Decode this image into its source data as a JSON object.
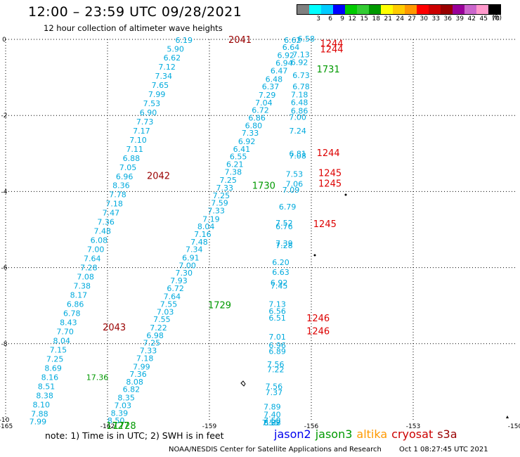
{
  "title": "12:00 – 23:59 UTC 09/28/2021",
  "subtitle": "12 hour collection of altimeter wave heights",
  "colorbar": {
    "colors": [
      "#808080",
      "#00ffff",
      "#00ccff",
      "#0000ff",
      "#00cc00",
      "#33cc33",
      "#009900",
      "#ffff00",
      "#ffcc00",
      "#ff9900",
      "#ff0000",
      "#cc0000",
      "#990000",
      "#990099",
      "#cc66cc",
      "#ff99cc",
      "#000000"
    ],
    "ticks": [
      "",
      "3",
      "6",
      "9",
      "12",
      "15",
      "18",
      "21",
      "24",
      "27",
      "30",
      "33",
      "36",
      "39",
      "42",
      "45",
      "70"
    ],
    "unit": "(ft)"
  },
  "note": "note:  1) Time is in UTC;  2) SWH is in feet",
  "legend": [
    {
      "name": "jason2",
      "color": "#0000ee"
    },
    {
      "name": "jason3",
      "color": "#009900"
    },
    {
      "name": "altika",
      "color": "#ff9900"
    },
    {
      "name": "cryosat",
      "color": "#cc0000"
    },
    {
      "name": "s3a",
      "color": "#990000"
    }
  ],
  "footer": {
    "credit": "NOAA/NESDIS Center for Satellite Applications and Research",
    "date": "Oct  1 08:27:45 UTC 2021"
  },
  "chart_data": {
    "type": "scatter",
    "xlim": [
      -165,
      -150
    ],
    "ylim": [
      -10,
      0
    ],
    "xticks": [
      "-165",
      "-162",
      "-159",
      "-156",
      "-153",
      "-150"
    ],
    "yticks": [
      "0",
      "-2",
      "-4",
      "-6",
      "-8",
      "-10"
    ],
    "grid": true,
    "value_color": "#00aadd",
    "tracks": [
      {
        "points": [
          [
            -159.75,
            -0.02,
            "6.19"
          ],
          [
            -160.0,
            -0.25,
            "5.90"
          ],
          [
            -160.1,
            -0.48,
            "6.62"
          ],
          [
            -160.25,
            -0.72,
            "7.12"
          ],
          [
            -160.35,
            -0.96,
            "7.34"
          ],
          [
            -160.45,
            -1.2,
            "7.65"
          ],
          [
            -160.55,
            -1.44,
            "7.99"
          ],
          [
            -160.7,
            -1.68,
            "7.53"
          ],
          [
            -160.8,
            -1.92,
            "6.90"
          ],
          [
            -160.9,
            -2.16,
            "7.73"
          ],
          [
            -161.0,
            -2.4,
            "7.17"
          ],
          [
            -161.1,
            -2.64,
            "7.10"
          ],
          [
            -161.2,
            -2.88,
            "7.11"
          ],
          [
            -161.3,
            -3.12,
            "6.88"
          ],
          [
            -161.4,
            -3.36,
            "7.05"
          ],
          [
            -161.5,
            -3.6,
            "6.96"
          ],
          [
            -161.6,
            -3.84,
            "8.36"
          ],
          [
            -161.7,
            -4.08,
            "7.78"
          ],
          [
            -161.8,
            -4.32,
            "7.18"
          ],
          [
            -161.9,
            -4.56,
            "7.47"
          ],
          [
            -162.05,
            -4.8,
            "7.36"
          ],
          [
            -162.15,
            -5.04,
            "7.48"
          ],
          [
            -162.25,
            -5.28,
            "6.08"
          ],
          [
            -162.35,
            -5.52,
            "7.00"
          ],
          [
            -162.45,
            -5.76,
            "7.64"
          ],
          [
            -162.55,
            -6.0,
            "7.28"
          ],
          [
            -162.65,
            -6.24,
            "7.08"
          ],
          [
            -162.75,
            -6.48,
            "7.38"
          ],
          [
            -162.85,
            -6.72,
            "8.17"
          ],
          [
            -162.95,
            -6.96,
            "6.86"
          ],
          [
            -163.05,
            -7.2,
            "6.78"
          ],
          [
            -163.15,
            -7.44,
            "8.43"
          ],
          [
            -163.25,
            -7.68,
            "7.70"
          ],
          [
            -163.35,
            -7.92,
            "8.04"
          ],
          [
            -163.45,
            -8.16,
            "7.15"
          ],
          [
            -163.55,
            -8.4,
            "7.25"
          ],
          [
            -163.6,
            -8.64,
            "8.69"
          ],
          [
            -163.7,
            -8.88,
            "8.16"
          ],
          [
            -163.8,
            -9.12,
            "8.51"
          ],
          [
            -163.85,
            -9.36,
            "8.38"
          ],
          [
            -163.95,
            -9.6,
            "8.10"
          ],
          [
            -164.0,
            -9.84,
            "7.88"
          ],
          [
            -164.05,
            -10.05,
            "7.99"
          ]
        ]
      },
      {
        "points": [
          [
            -156.55,
            -0.02,
            "6.62"
          ],
          [
            -156.6,
            -0.2,
            "6.64"
          ],
          [
            -156.75,
            -0.42,
            "6.92"
          ],
          [
            -156.8,
            -0.62,
            "6.94"
          ],
          [
            -156.95,
            -0.82,
            "6.47"
          ],
          [
            -157.1,
            -1.04,
            "6.48"
          ],
          [
            -157.2,
            -1.24,
            "6.37"
          ],
          [
            -157.3,
            -1.46,
            "7.29"
          ],
          [
            -157.4,
            -1.66,
            "7.04"
          ],
          [
            -157.5,
            -1.86,
            "6.72"
          ],
          [
            -157.6,
            -2.06,
            "6.86"
          ],
          [
            -157.7,
            -2.26,
            "6.80"
          ],
          [
            -157.8,
            -2.46,
            "7.33"
          ],
          [
            -157.9,
            -2.68,
            "6.92"
          ],
          [
            -158.05,
            -2.88,
            "6.41"
          ],
          [
            -158.15,
            -3.08,
            "6.55"
          ],
          [
            -158.25,
            -3.28,
            "6.21"
          ],
          [
            -158.3,
            -3.48,
            "7.38"
          ],
          [
            -158.45,
            -3.7,
            "7.25"
          ],
          [
            -158.55,
            -3.9,
            "7.33"
          ],
          [
            -158.65,
            -4.1,
            "7.25"
          ],
          [
            -158.7,
            -4.3,
            "7.59"
          ],
          [
            -158.8,
            -4.5,
            "7.33"
          ],
          [
            -158.95,
            -4.72,
            "7.19"
          ],
          [
            -159.1,
            -4.92,
            "8.04"
          ],
          [
            -159.2,
            -5.12,
            "7.16"
          ],
          [
            -159.3,
            -5.32,
            "7.48"
          ],
          [
            -159.45,
            -5.52,
            "7.34"
          ],
          [
            -159.55,
            -5.74,
            "6.91"
          ],
          [
            -159.65,
            -5.94,
            "7.00"
          ],
          [
            -159.75,
            -6.14,
            "7.30"
          ],
          [
            -159.9,
            -6.34,
            "7.93"
          ],
          [
            -160.0,
            -6.54,
            "6.72"
          ],
          [
            -160.1,
            -6.76,
            "7.64"
          ],
          [
            -160.2,
            -6.96,
            "7.55"
          ],
          [
            -160.3,
            -7.16,
            "7.03"
          ],
          [
            -160.4,
            -7.36,
            "7.55"
          ],
          [
            -160.5,
            -7.58,
            "7.22"
          ],
          [
            -160.6,
            -7.78,
            "6.98"
          ],
          [
            -160.7,
            -7.98,
            "7.25"
          ],
          [
            -160.8,
            -8.18,
            "7.33"
          ],
          [
            -160.9,
            -8.38,
            "7.18"
          ],
          [
            -161.0,
            -8.6,
            "7.99"
          ],
          [
            -161.1,
            -8.8,
            "7.36"
          ],
          [
            -161.2,
            -9.0,
            "8.08"
          ],
          [
            -161.3,
            -9.2,
            "6.82"
          ],
          [
            -161.45,
            -9.42,
            "8.35"
          ],
          [
            -161.55,
            -9.62,
            "7.03"
          ],
          [
            -161.65,
            -9.82,
            "8.39"
          ],
          [
            -161.75,
            -10.02,
            "8.50"
          ]
        ]
      },
      {
        "points": [
          [
            -156.15,
            0.02,
            "6.58"
          ],
          [
            -156.3,
            -0.4,
            "7.13"
          ],
          [
            -156.35,
            -0.6,
            "6.92"
          ],
          [
            -156.3,
            -0.94,
            "6.73"
          ],
          [
            -156.3,
            -1.24,
            "6.78"
          ],
          [
            -156.35,
            -1.45,
            "7.18"
          ],
          [
            -156.35,
            -1.65,
            "6.48"
          ],
          [
            -156.35,
            -1.88,
            "6.86"
          ],
          [
            -156.4,
            -2.04,
            "7.00"
          ],
          [
            -156.4,
            -2.4,
            "7.24"
          ],
          [
            -156.4,
            -3.0,
            "6.81"
          ],
          [
            -156.4,
            -3.06,
            "7.08"
          ],
          [
            -156.5,
            -3.54,
            "7.53"
          ],
          [
            -156.5,
            -3.8,
            "7.06"
          ],
          [
            -156.6,
            -3.96,
            "7.09"
          ],
          [
            -156.7,
            -4.4,
            "6.79"
          ],
          [
            -156.8,
            -4.82,
            "7.52"
          ],
          [
            -156.8,
            -4.92,
            "6.76"
          ],
          [
            -156.8,
            -5.36,
            "7.39"
          ],
          [
            -156.8,
            -5.42,
            "7.28"
          ],
          [
            -156.9,
            -5.86,
            "6.20"
          ],
          [
            -156.9,
            -6.12,
            "6.63"
          ],
          [
            -156.95,
            -6.4,
            "6.92"
          ],
          [
            -156.95,
            -6.48,
            "7.45"
          ],
          [
            -157.0,
            -6.96,
            "7.13"
          ],
          [
            -157.0,
            -7.14,
            "6.56"
          ],
          [
            -157.0,
            -7.32,
            "6.51"
          ],
          [
            -157.0,
            -7.82,
            "7.01"
          ],
          [
            -157.0,
            -8.04,
            "6.96"
          ],
          [
            -157.0,
            -8.2,
            "6.89"
          ],
          [
            -157.05,
            -8.54,
            "7.56"
          ],
          [
            -157.05,
            -8.68,
            "7.22"
          ],
          [
            -157.1,
            -9.12,
            "7.56"
          ],
          [
            -157.1,
            -9.28,
            "7.37"
          ],
          [
            -157.15,
            -9.66,
            "7.89"
          ],
          [
            -157.15,
            -9.86,
            "7.40"
          ],
          [
            -157.15,
            -10.02,
            "7.58"
          ],
          [
            -157.15,
            -10.35,
            "8.37"
          ],
          [
            -157.15,
            -10.48,
            "6.88"
          ],
          [
            -157.2,
            -10.58,
            "7.55"
          ]
        ]
      }
    ],
    "time_labels": [
      {
        "x": -158.1,
        "y": 0.0,
        "text": "2041",
        "color": "#990000"
      },
      {
        "x": -155.4,
        "y": -0.1,
        "text": "1244",
        "color": "#dd0000"
      },
      {
        "x": -155.4,
        "y": -0.25,
        "text": "1244",
        "color": "#dd0000"
      },
      {
        "x": -155.5,
        "y": -0.78,
        "text": "1731",
        "color": "#009900"
      },
      {
        "x": -155.5,
        "y": -2.98,
        "text": "1244",
        "color": "#dd0000"
      },
      {
        "x": -155.45,
        "y": -3.5,
        "text": "1245",
        "color": "#dd0000"
      },
      {
        "x": -155.45,
        "y": -3.78,
        "text": "1245",
        "color": "#dd0000"
      },
      {
        "x": -160.5,
        "y": -3.58,
        "text": "2042",
        "color": "#990000"
      },
      {
        "x": -157.4,
        "y": -3.84,
        "text": "1730",
        "color": "#009900"
      },
      {
        "x": -155.6,
        "y": -4.84,
        "text": "1245",
        "color": "#dd0000"
      },
      {
        "x": -158.7,
        "y": -6.98,
        "text": "1729",
        "color": "#009900"
      },
      {
        "x": -155.8,
        "y": -7.32,
        "text": "1246",
        "color": "#dd0000"
      },
      {
        "x": -155.8,
        "y": -7.66,
        "text": "1246",
        "color": "#dd0000"
      },
      {
        "x": -161.8,
        "y": -7.56,
        "text": "2043",
        "color": "#990000"
      },
      {
        "x": -161.5,
        "y": -10.38,
        "text": "1728",
        "color": "#009900"
      },
      {
        "x": -161.7,
        "y": -10.78,
        "text": "1727",
        "color": "#009900"
      }
    ],
    "extra_values": [
      {
        "x": -162.3,
        "y": -8.88,
        "text": "17.36",
        "color": "#009900"
      }
    ]
  }
}
